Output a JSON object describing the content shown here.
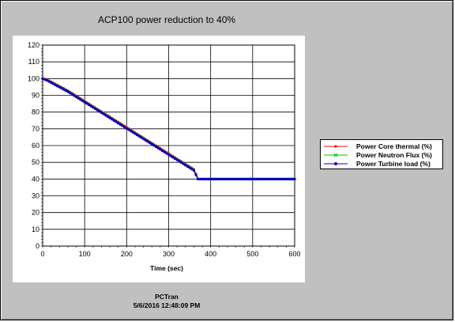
{
  "chart_data": {
    "type": "line",
    "title": "ACP100 power reduction to 40%",
    "xlabel": "Time (sec)",
    "ylabel": "",
    "xlim": [
      0,
      600
    ],
    "ylim": [
      0,
      120
    ],
    "xticks": [
      0,
      100,
      200,
      300,
      400,
      500,
      600
    ],
    "yticks": [
      0,
      10,
      20,
      30,
      40,
      50,
      60,
      70,
      80,
      90,
      100,
      110,
      120
    ],
    "grid": true,
    "legend_position": "right",
    "series": [
      {
        "name": "Power Core thermal (%)",
        "color": "#ff0000",
        "marker": "circle",
        "x": [
          0,
          10,
          60,
          120,
          180,
          240,
          300,
          360,
          370,
          400,
          450,
          500,
          550,
          600
        ],
        "values": [
          100,
          99.6,
          93,
          83.6,
          74.2,
          64.8,
          55.4,
          46,
          40,
          40,
          40,
          40,
          40,
          40
        ]
      },
      {
        "name": "Power Neutron Flux (%)",
        "color": "#00c000",
        "marker": "cross",
        "x": [
          0,
          10,
          60,
          120,
          180,
          240,
          300,
          360,
          370,
          400,
          450,
          500,
          550,
          600
        ],
        "values": [
          100,
          99.2,
          92.6,
          83.2,
          73.8,
          64.4,
          55,
          45.6,
          40,
          40,
          40,
          40,
          40,
          40
        ]
      },
      {
        "name": "Power Turbine load (%)",
        "color": "#0000c0",
        "marker": "circle",
        "x": [
          0,
          10,
          60,
          120,
          180,
          240,
          300,
          360,
          370,
          400,
          450,
          500,
          550,
          600
        ],
        "values": [
          100,
          99,
          92.2,
          82.8,
          73.4,
          64,
          54.6,
          45.2,
          40,
          40,
          40,
          40,
          40,
          40
        ]
      }
    ]
  },
  "footer": {
    "name": "PCTran",
    "datetime": "5/6/2016 12:48:09 PM"
  }
}
